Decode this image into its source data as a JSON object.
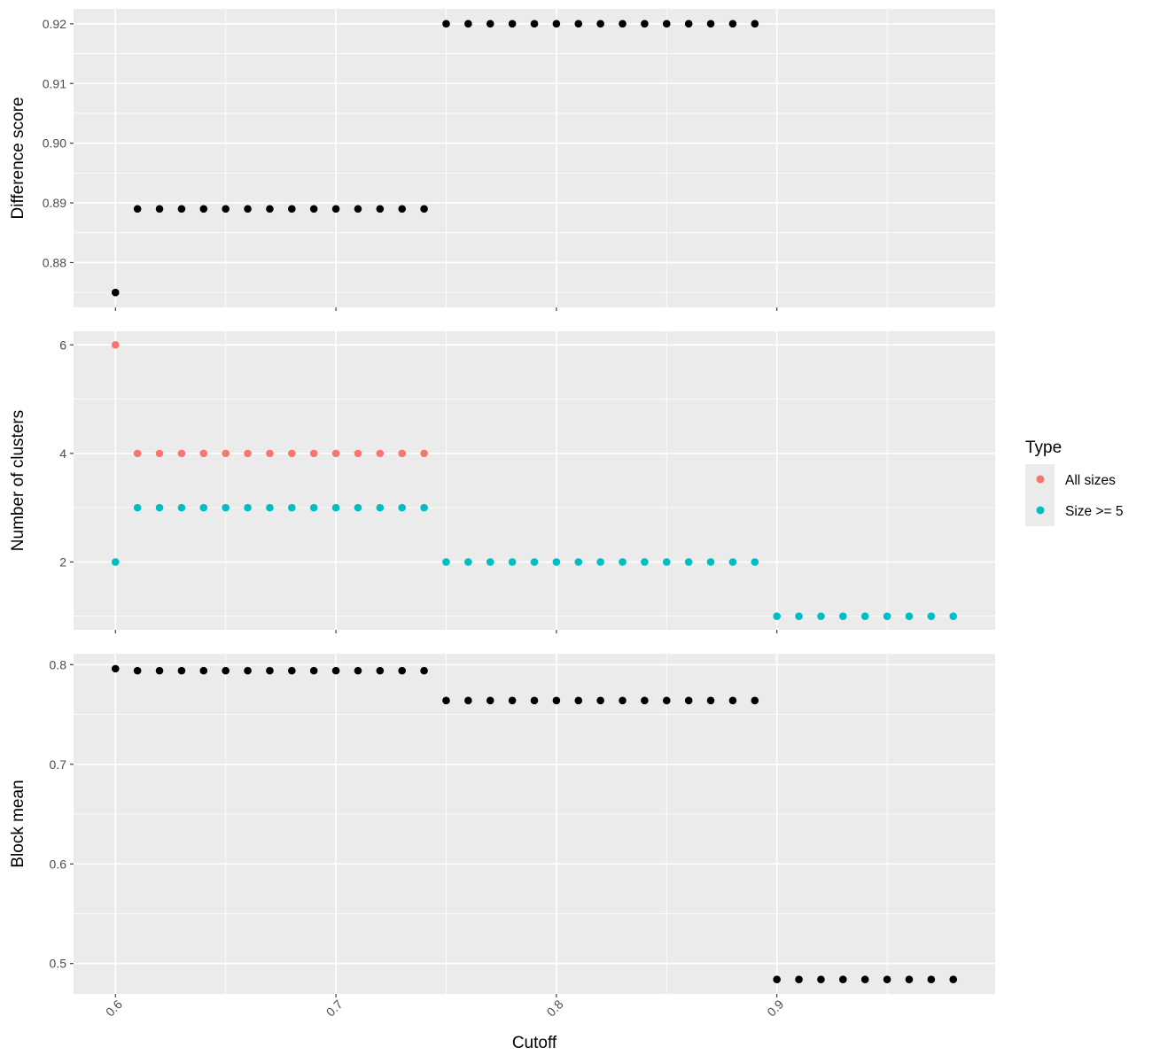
{
  "chart_data": {
    "type": "scatter",
    "xlabel": "Cutoff",
    "x_ticks": [
      "0.6",
      "0.7",
      "0.8",
      "0.9"
    ],
    "legend": {
      "title": "Type",
      "position": "right",
      "entries": [
        {
          "name": "All sizes",
          "color": "#F8766D"
        },
        {
          "name": "Size >= 5",
          "color": "#00BFC4"
        }
      ]
    },
    "facets": [
      {
        "ylabel": "Difference score",
        "ylim": [
          0.8725,
          0.9225
        ],
        "y_ticks": [
          0.88,
          0.89,
          0.9,
          0.91,
          0.92
        ],
        "y_tick_labels": [
          "0.88",
          "0.89",
          "0.90",
          "0.91",
          "0.92"
        ],
        "series": [
          {
            "color": "#000000",
            "x": [
              0.6,
              0.61,
              0.62,
              0.63,
              0.64,
              0.65,
              0.66,
              0.67,
              0.68,
              0.69,
              0.7,
              0.71,
              0.72,
              0.73,
              0.74,
              0.75,
              0.76,
              0.77,
              0.78,
              0.79,
              0.8,
              0.81,
              0.82,
              0.83,
              0.84,
              0.85,
              0.86,
              0.87,
              0.88,
              0.89
            ],
            "y": [
              0.875,
              0.889,
              0.889,
              0.889,
              0.889,
              0.889,
              0.889,
              0.889,
              0.889,
              0.889,
              0.889,
              0.889,
              0.889,
              0.889,
              0.889,
              0.92,
              0.92,
              0.92,
              0.92,
              0.92,
              0.92,
              0.92,
              0.92,
              0.92,
              0.92,
              0.92,
              0.92,
              0.92,
              0.92,
              0.92
            ]
          }
        ]
      },
      {
        "ylabel": "Number of clusters",
        "ylim": [
          0.75,
          6.25
        ],
        "y_ticks": [
          2,
          4,
          6
        ],
        "y_tick_labels": [
          "2",
          "4",
          "6"
        ],
        "series": [
          {
            "name": "All sizes",
            "color": "#F8766D",
            "x": [
              0.6,
              0.61,
              0.62,
              0.63,
              0.64,
              0.65,
              0.66,
              0.67,
              0.68,
              0.69,
              0.7,
              0.71,
              0.72,
              0.73,
              0.74
            ],
            "y": [
              6,
              4,
              4,
              4,
              4,
              4,
              4,
              4,
              4,
              4,
              4,
              4,
              4,
              4,
              4
            ]
          },
          {
            "name": "Size >= 5",
            "color": "#00BFC4",
            "x": [
              0.6,
              0.61,
              0.62,
              0.63,
              0.64,
              0.65,
              0.66,
              0.67,
              0.68,
              0.69,
              0.7,
              0.71,
              0.72,
              0.73,
              0.74,
              0.75,
              0.76,
              0.77,
              0.78,
              0.79,
              0.8,
              0.81,
              0.82,
              0.83,
              0.84,
              0.85,
              0.86,
              0.87,
              0.88,
              0.89,
              0.9,
              0.91,
              0.92,
              0.93,
              0.94,
              0.95,
              0.96,
              0.97,
              0.98
            ],
            "y": [
              2,
              3,
              3,
              3,
              3,
              3,
              3,
              3,
              3,
              3,
              3,
              3,
              3,
              3,
              3,
              2,
              2,
              2,
              2,
              2,
              2,
              2,
              2,
              2,
              2,
              2,
              2,
              2,
              2,
              2,
              1,
              1,
              1,
              1,
              1,
              1,
              1,
              1,
              1
            ]
          }
        ]
      },
      {
        "ylabel": "Block mean",
        "ylim": [
          0.4695,
          0.811
        ],
        "y_ticks": [
          0.5,
          0.6,
          0.7,
          0.8
        ],
        "y_tick_labels": [
          "0.5",
          "0.6",
          "0.7",
          "0.8"
        ],
        "series": [
          {
            "color": "#000000",
            "x": [
              0.6,
              0.61,
              0.62,
              0.63,
              0.64,
              0.65,
              0.66,
              0.67,
              0.68,
              0.69,
              0.7,
              0.71,
              0.72,
              0.73,
              0.74,
              0.75,
              0.76,
              0.77,
              0.78,
              0.79,
              0.8,
              0.81,
              0.82,
              0.83,
              0.84,
              0.85,
              0.86,
              0.87,
              0.88,
              0.89,
              0.9,
              0.91,
              0.92,
              0.93,
              0.94,
              0.95,
              0.96,
              0.97,
              0.98
            ],
            "y": [
              0.796,
              0.794,
              0.794,
              0.794,
              0.794,
              0.794,
              0.794,
              0.794,
              0.794,
              0.794,
              0.794,
              0.794,
              0.794,
              0.794,
              0.794,
              0.764,
              0.764,
              0.764,
              0.764,
              0.764,
              0.764,
              0.764,
              0.764,
              0.764,
              0.764,
              0.764,
              0.764,
              0.764,
              0.764,
              0.764,
              0.484,
              0.484,
              0.484,
              0.484,
              0.484,
              0.484,
              0.484,
              0.484,
              0.484
            ]
          }
        ]
      }
    ],
    "xlim": [
      0.581,
      0.999
    ],
    "grid": true
  },
  "colors": {
    "panel_background": "#EBEBEB",
    "grid": "#FFFFFF"
  }
}
